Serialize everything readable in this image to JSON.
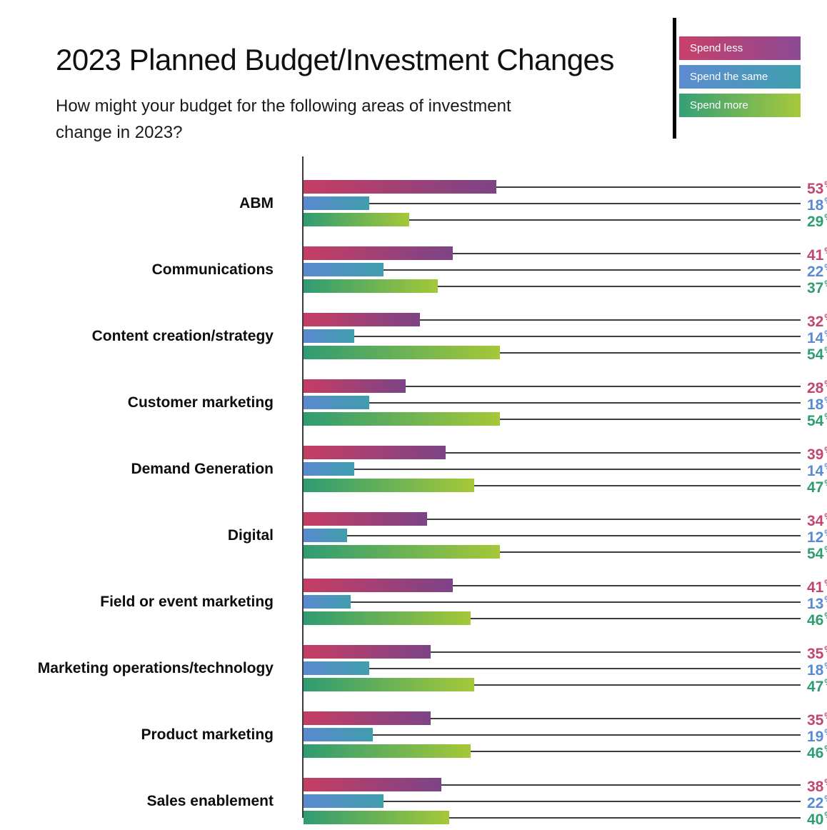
{
  "header": {
    "title": "2023 Planned Budget/Investment Changes",
    "subtitle_line1": "How might your budget for the following areas of investment",
    "subtitle_line2": "change in 2023?"
  },
  "legend": {
    "position": "top-right",
    "items": [
      {
        "id": "less",
        "label": "Spend less",
        "gradient_start": "#c9406a",
        "gradient_end": "#8b4a93"
      },
      {
        "id": "same",
        "label": "Spend the same",
        "gradient_start": "#5d8bd1",
        "gradient_end": "#3f9fae"
      },
      {
        "id": "more",
        "label": "Spend more",
        "gradient_start": "#359f77",
        "gradient_end": "#a6c93c"
      }
    ],
    "text_color": "#ffffff"
  },
  "chart_data": {
    "type": "bar",
    "orientation": "horizontal",
    "title": "2023 Planned Budget/Investment Changes",
    "unit": "%",
    "xlim": [
      0,
      100
    ],
    "grid": false,
    "value_labels": "right edge, colored by series, connected with leader lines",
    "categories": [
      "ABM",
      "Communications",
      "Content creation/strategy",
      "Customer marketing",
      "Demand Generation",
      "Digital",
      "Field or event marketing",
      "Marketing operations/technology",
      "Product marketing",
      "Sales enablement"
    ],
    "series": [
      {
        "name": "Spend less",
        "values": [
          53,
          41,
          32,
          28,
          39,
          34,
          41,
          35,
          35,
          38
        ],
        "gradient_start": "#c63d63",
        "gradient_end": "#7c4487",
        "label_color": "#c2476d"
      },
      {
        "name": "Spend the same",
        "values": [
          18,
          22,
          14,
          18,
          14,
          12,
          13,
          18,
          19,
          22
        ],
        "gradient_start": "#5a8ad0",
        "gradient_end": "#409dac",
        "label_color": "#5a8bd2"
      },
      {
        "name": "Spend more",
        "values": [
          29,
          37,
          54,
          54,
          47,
          54,
          46,
          47,
          46,
          40
        ],
        "gradient_start": "#2f9c73",
        "gradient_end": "#a5c838",
        "label_color": "#2f9d72"
      }
    ]
  }
}
